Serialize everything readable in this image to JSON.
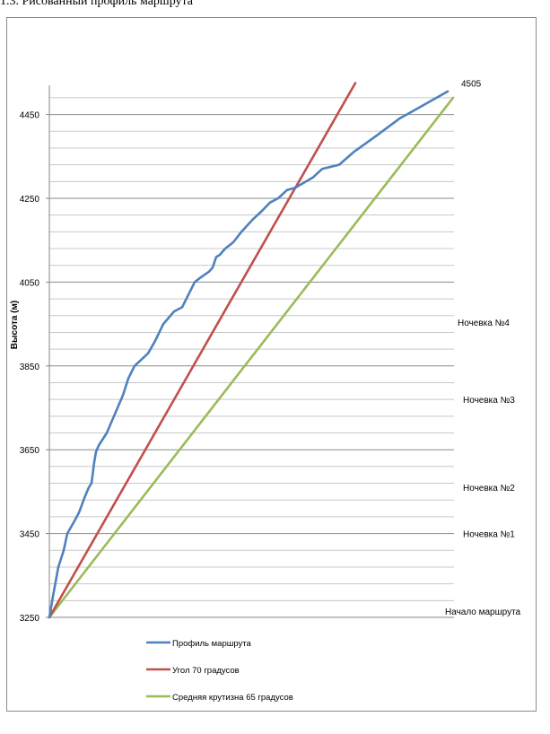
{
  "caption": "1.3. Рисованный профиль маршрута",
  "chart_data": {
    "type": "line",
    "ylabel": "Высота (м)",
    "xlabel": "",
    "ylim": [
      3250,
      4505
    ],
    "y_ticks": [
      3250,
      3450,
      3650,
      3850,
      4050,
      4250,
      4450
    ],
    "grid": true,
    "legend_position": "bottom-left",
    "series": [
      {
        "name": "Профиль маршрута",
        "color": "#4f81bd",
        "points": [
          [
            0,
            3250
          ],
          [
            4,
            3300
          ],
          [
            10,
            3370
          ],
          [
            16,
            3410
          ],
          [
            20,
            3450
          ],
          [
            28,
            3480
          ],
          [
            33,
            3500
          ],
          [
            40,
            3540
          ],
          [
            44,
            3560
          ],
          [
            47,
            3570
          ],
          [
            50,
            3620
          ],
          [
            52,
            3645
          ],
          [
            55,
            3660
          ],
          [
            64,
            3690
          ],
          [
            70,
            3720
          ],
          [
            76,
            3750
          ],
          [
            82,
            3780
          ],
          [
            88,
            3820
          ],
          [
            95,
            3850
          ],
          [
            110,
            3880
          ],
          [
            118,
            3910
          ],
          [
            127,
            3950
          ],
          [
            139,
            3980
          ],
          [
            148,
            3990
          ],
          [
            155,
            4020
          ],
          [
            162,
            4050
          ],
          [
            168,
            4060
          ],
          [
            178,
            4075
          ],
          [
            182,
            4085
          ],
          [
            186,
            4110
          ],
          [
            190,
            4115
          ],
          [
            196,
            4130
          ],
          [
            205,
            4145
          ],
          [
            214,
            4170
          ],
          [
            227,
            4200
          ],
          [
            237,
            4220
          ],
          [
            246,
            4240
          ],
          [
            255,
            4250
          ],
          [
            265,
            4270
          ],
          [
            274,
            4275
          ],
          [
            294,
            4300
          ],
          [
            304,
            4320
          ],
          [
            323,
            4330
          ],
          [
            339,
            4360
          ],
          [
            365,
            4400
          ],
          [
            390,
            4440
          ],
          [
            415,
            4470
          ],
          [
            444,
            4505
          ]
        ]
      },
      {
        "name": "Угол 70 градусов",
        "color": "#c0504d",
        "points": [
          [
            0,
            3250
          ],
          [
            341,
            4525
          ]
        ]
      },
      {
        "name": "Средняя крутизна 65 градусов",
        "color": "#9bbb59",
        "points": [
          [
            0,
            3250
          ],
          [
            450,
            4490
          ]
        ]
      }
    ],
    "annotations": [
      {
        "text": "4505",
        "y": 4525
      },
      {
        "text": "Ночевка №4",
        "y": 3955
      },
      {
        "text": "Ночевка №3",
        "y": 3770
      },
      {
        "text": "Ночевка №2",
        "y": 3560
      },
      {
        "text": "Ночевка №1",
        "y": 3450
      },
      {
        "text": "Начало маршрута",
        "y": 3265
      }
    ]
  }
}
